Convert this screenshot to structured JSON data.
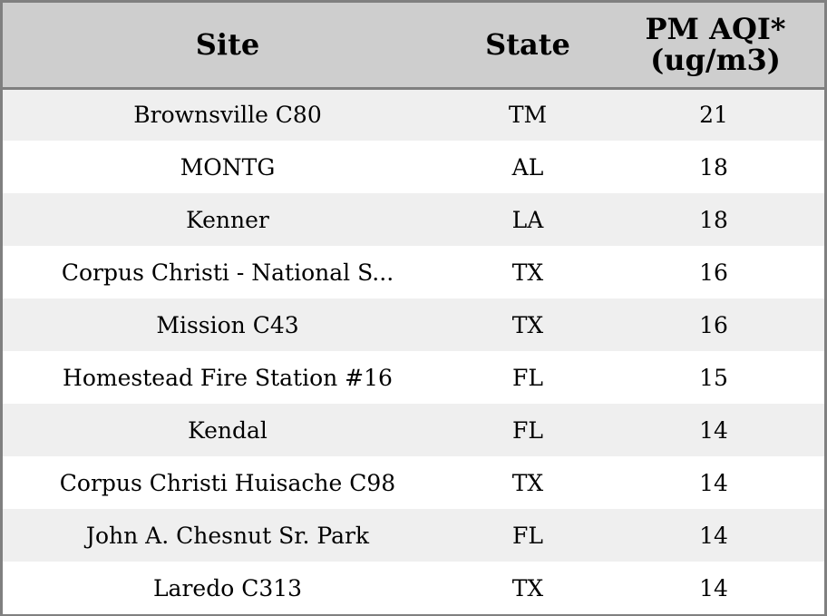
{
  "chart_data": {
    "type": "table",
    "columns": [
      "Site",
      "State",
      "PM AQI*",
      "(ug/m3)"
    ],
    "header": {
      "site": "Site",
      "state": "State",
      "pm_line1": "PM AQI*",
      "pm_line2": "(ug/m3)"
    },
    "rows": [
      {
        "site": "Brownsville C80",
        "state": "TM",
        "pm": "21"
      },
      {
        "site": "MONTG",
        "state": "AL",
        "pm": "18"
      },
      {
        "site": "Kenner",
        "state": "LA",
        "pm": "18"
      },
      {
        "site": "Corpus Christi - National S...",
        "state": "TX",
        "pm": "16"
      },
      {
        "site": "Mission C43",
        "state": "TX",
        "pm": "16"
      },
      {
        "site": "Homestead Fire Station #16",
        "state": "FL",
        "pm": "15"
      },
      {
        "site": "Kendal",
        "state": "FL",
        "pm": "14"
      },
      {
        "site": "Corpus Christi Huisache C98",
        "state": "TX",
        "pm": "14"
      },
      {
        "site": "John A. Chesnut Sr. Park",
        "state": "FL",
        "pm": "14"
      },
      {
        "site": "Laredo C313",
        "state": "TX",
        "pm": "14"
      }
    ],
    "colors": {
      "header_bg": "#cecece",
      "row_alt_bg": "#efefef",
      "row_bg": "#ffffff",
      "border": "#808080"
    }
  }
}
